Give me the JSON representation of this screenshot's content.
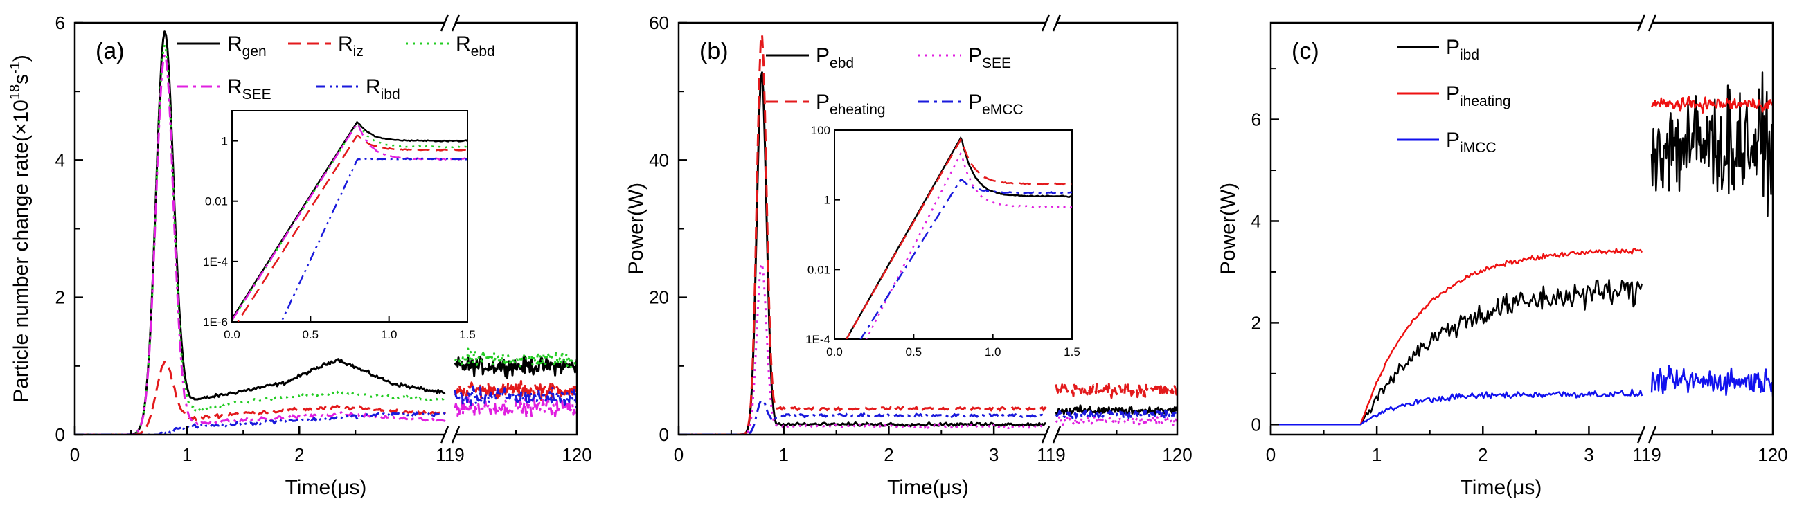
{
  "chart_data": [
    {
      "type": "line",
      "panel_label": "(a)",
      "xlabel": "Time(μs)",
      "ylabel": "Particle number change rate(×10",
      "ylabel_exp": "18",
      "ylabel_unit_s": "s",
      "ylabel_exp2": "-1",
      "ylabel_close": ")",
      "ylim": [
        0,
        6
      ],
      "y_ticks": [
        "0",
        "2",
        "4",
        "6"
      ],
      "x_ticks_left": [
        "0",
        "1",
        "2"
      ],
      "x_tick_break": "119",
      "x_tick_right": "120",
      "x_break_at": 3.3,
      "series": [
        {
          "name": "R",
          "sub": "gen",
          "color": "#000000",
          "dash": "solid",
          "peak": 5.75,
          "plateau_left": [
            0.45,
            0.6,
            0.75,
            1.1,
            0.75,
            0.6
          ],
          "plateau_right": 1.0
        },
        {
          "name": "R",
          "sub": "iz",
          "color": "#e31a1c",
          "dash": "dash",
          "peak": 1.0,
          "plateau_left": [
            0.2,
            0.3,
            0.35,
            0.4,
            0.35,
            0.3
          ],
          "plateau_right": 0.65
        },
        {
          "name": "R",
          "sub": "ebd",
          "color": "#22cc22",
          "dash": "dot",
          "peak": 5.6,
          "plateau_left": [
            0.3,
            0.45,
            0.55,
            0.6,
            0.55,
            0.5
          ],
          "plateau_right": 1.1
        },
        {
          "name": "R",
          "sub": "SEE",
          "color": "#e020e0",
          "dash": "dashdot",
          "peak": 5.5,
          "plateau_left": [
            0.15,
            0.2,
            0.25,
            0.3,
            0.25,
            0.2
          ],
          "plateau_right": 0.4
        },
        {
          "name": "R",
          "sub": "ibd",
          "color": "#1a1adc",
          "dash": "dashdotdot",
          "peak": 0.0,
          "plateau_left": [
            0.1,
            0.15,
            0.2,
            0.25,
            0.3,
            0.3
          ],
          "plateau_right": 0.55
        }
      ],
      "inset": {
        "xlim": [
          0,
          1.5
        ],
        "x_ticks": [
          "0.0",
          "0.5",
          "1.0",
          "1.5"
        ],
        "ylim_log10": [
          -6,
          1
        ],
        "y_ticks": [
          "1E-6",
          "1E-4",
          "0.01",
          "1"
        ]
      }
    },
    {
      "type": "line",
      "panel_label": "(b)",
      "xlabel": "Time(μs)",
      "ylabel": "Power(W)",
      "ylim": [
        0,
        60
      ],
      "y_ticks": [
        "0",
        "20",
        "40",
        "60"
      ],
      "x_ticks_left": [
        "0",
        "1",
        "2",
        "3"
      ],
      "x_tick_break": "119",
      "x_tick_right": "120",
      "x_break_at": 3.5,
      "series": [
        {
          "name": "P",
          "sub": "ebd",
          "color": "#000000",
          "dash": "solid",
          "peak": 53,
          "plateau_left": 1.5,
          "plateau_right": 3.5
        },
        {
          "name": "P",
          "sub": "SEE",
          "color": "#e020e0",
          "dash": "dot",
          "peak": 25,
          "plateau_left": 1.2,
          "plateau_right": 2.0
        },
        {
          "name": "P",
          "sub": "eheating",
          "color": "#e31a1c",
          "dash": "dash",
          "peak": 58.5,
          "plateau_left": 3.8,
          "plateau_right": 6.5
        },
        {
          "name": "P",
          "sub": "eMCC",
          "color": "#1a1adc",
          "dash": "dashdot",
          "peak": 5.0,
          "plateau_left": 2.8,
          "plateau_right": 3.0
        }
      ],
      "inset": {
        "xlim": [
          0,
          1.5
        ],
        "x_ticks": [
          "0.0",
          "0.5",
          "1.0",
          "1.5"
        ],
        "ylim_log10": [
          -4,
          2
        ],
        "y_ticks": [
          "1E-4",
          "0.01",
          "1",
          "100"
        ]
      }
    },
    {
      "type": "line",
      "panel_label": "(c)",
      "xlabel": "Time(μs)",
      "ylabel": "Power(W)",
      "ylim": [
        -0.2,
        7.9
      ],
      "y_ticks": [
        "0",
        "2",
        "4",
        "6"
      ],
      "x_ticks_left": [
        "0",
        "1",
        "2",
        "3"
      ],
      "x_tick_break": "119",
      "x_tick_right": "120",
      "x_break_at": 3.5,
      "series": [
        {
          "name": "P",
          "sub": "ibd",
          "color": "#000000",
          "dash": "solid",
          "plateau_left": 2.7,
          "plateau_right": 5.5
        },
        {
          "name": "P",
          "sub": "iheating",
          "color": "#ee1111",
          "dash": "solid",
          "plateau_left": 3.45,
          "plateau_right": 6.3
        },
        {
          "name": "P",
          "sub": "iMCC",
          "color": "#1111ee",
          "dash": "solid",
          "plateau_left": 0.6,
          "plateau_right": 0.85
        }
      ]
    }
  ]
}
